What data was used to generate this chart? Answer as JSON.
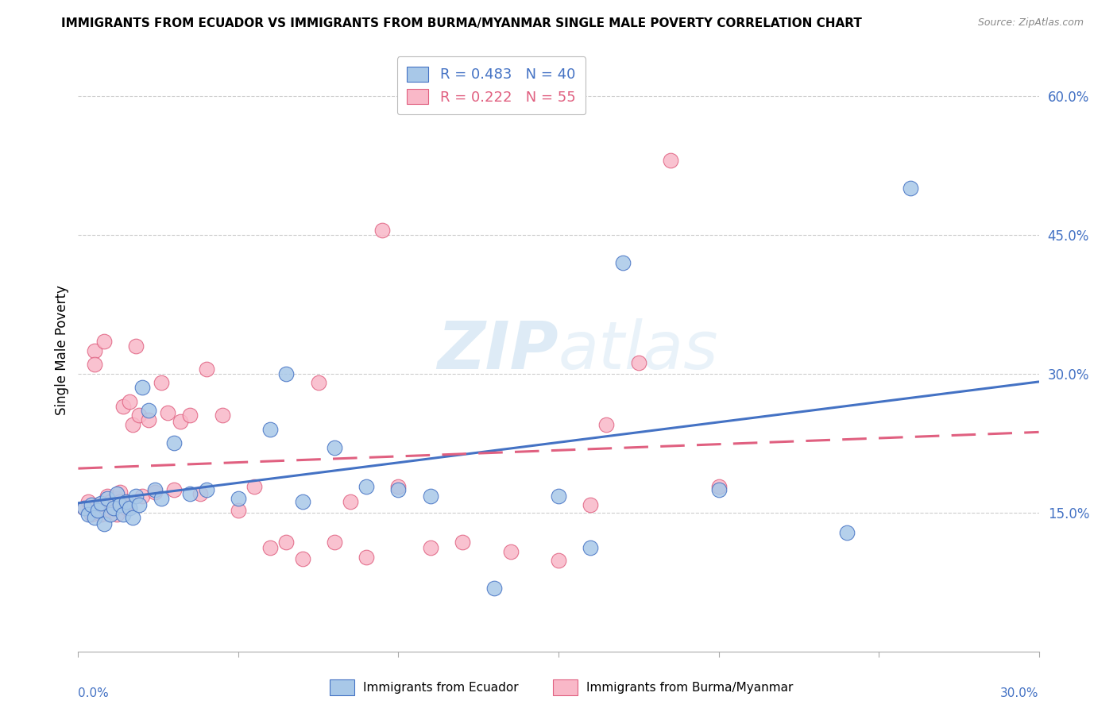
{
  "title": "IMMIGRANTS FROM ECUADOR VS IMMIGRANTS FROM BURMA/MYANMAR SINGLE MALE POVERTY CORRELATION CHART",
  "source": "Source: ZipAtlas.com",
  "ylabel": "Single Male Poverty",
  "right_yticks_vals": [
    0.6,
    0.45,
    0.3,
    0.15
  ],
  "right_yticks_labels": [
    "60.0%",
    "45.0%",
    "30.0%",
    "15.0%"
  ],
  "legend_ecuador": "R = 0.483   N = 40",
  "legend_burma": "R = 0.222   N = 55",
  "watermark": "ZIPatlas",
  "ecuador_color": "#a8c8e8",
  "ecuador_line_color": "#4472c4",
  "burma_color": "#f9b8c8",
  "burma_line_color": "#e06080",
  "xlim": [
    0.0,
    0.3
  ],
  "ylim": [
    0.0,
    0.65
  ],
  "ecuador_scatter_x": [
    0.002,
    0.003,
    0.004,
    0.005,
    0.006,
    0.007,
    0.008,
    0.009,
    0.01,
    0.011,
    0.012,
    0.013,
    0.014,
    0.015,
    0.016,
    0.017,
    0.018,
    0.019,
    0.02,
    0.022,
    0.024,
    0.026,
    0.03,
    0.035,
    0.04,
    0.05,
    0.06,
    0.065,
    0.07,
    0.08,
    0.09,
    0.1,
    0.11,
    0.13,
    0.15,
    0.16,
    0.17,
    0.2,
    0.24,
    0.26
  ],
  "ecuador_scatter_y": [
    0.155,
    0.148,
    0.158,
    0.145,
    0.152,
    0.16,
    0.138,
    0.165,
    0.148,
    0.155,
    0.17,
    0.158,
    0.148,
    0.162,
    0.155,
    0.145,
    0.168,
    0.158,
    0.285,
    0.26,
    0.175,
    0.165,
    0.225,
    0.17,
    0.175,
    0.165,
    0.24,
    0.3,
    0.162,
    0.22,
    0.178,
    0.175,
    0.168,
    0.068,
    0.168,
    0.112,
    0.42,
    0.175,
    0.128,
    0.5
  ],
  "burma_scatter_x": [
    0.002,
    0.003,
    0.004,
    0.005,
    0.005,
    0.006,
    0.007,
    0.008,
    0.008,
    0.009,
    0.01,
    0.01,
    0.011,
    0.012,
    0.012,
    0.013,
    0.013,
    0.014,
    0.015,
    0.015,
    0.016,
    0.017,
    0.018,
    0.019,
    0.02,
    0.022,
    0.024,
    0.026,
    0.028,
    0.03,
    0.032,
    0.035,
    0.038,
    0.04,
    0.045,
    0.05,
    0.055,
    0.06,
    0.065,
    0.07,
    0.075,
    0.08,
    0.085,
    0.09,
    0.095,
    0.1,
    0.11,
    0.12,
    0.135,
    0.15,
    0.16,
    0.165,
    0.175,
    0.185,
    0.2
  ],
  "burma_scatter_y": [
    0.155,
    0.162,
    0.148,
    0.325,
    0.31,
    0.158,
    0.148,
    0.335,
    0.16,
    0.168,
    0.152,
    0.162,
    0.155,
    0.148,
    0.165,
    0.172,
    0.162,
    0.265,
    0.155,
    0.16,
    0.27,
    0.245,
    0.33,
    0.255,
    0.168,
    0.25,
    0.172,
    0.29,
    0.258,
    0.175,
    0.248,
    0.255,
    0.17,
    0.305,
    0.255,
    0.152,
    0.178,
    0.112,
    0.118,
    0.1,
    0.29,
    0.118,
    0.162,
    0.102,
    0.455,
    0.178,
    0.112,
    0.118,
    0.108,
    0.098,
    0.158,
    0.245,
    0.312,
    0.53,
    0.178
  ]
}
